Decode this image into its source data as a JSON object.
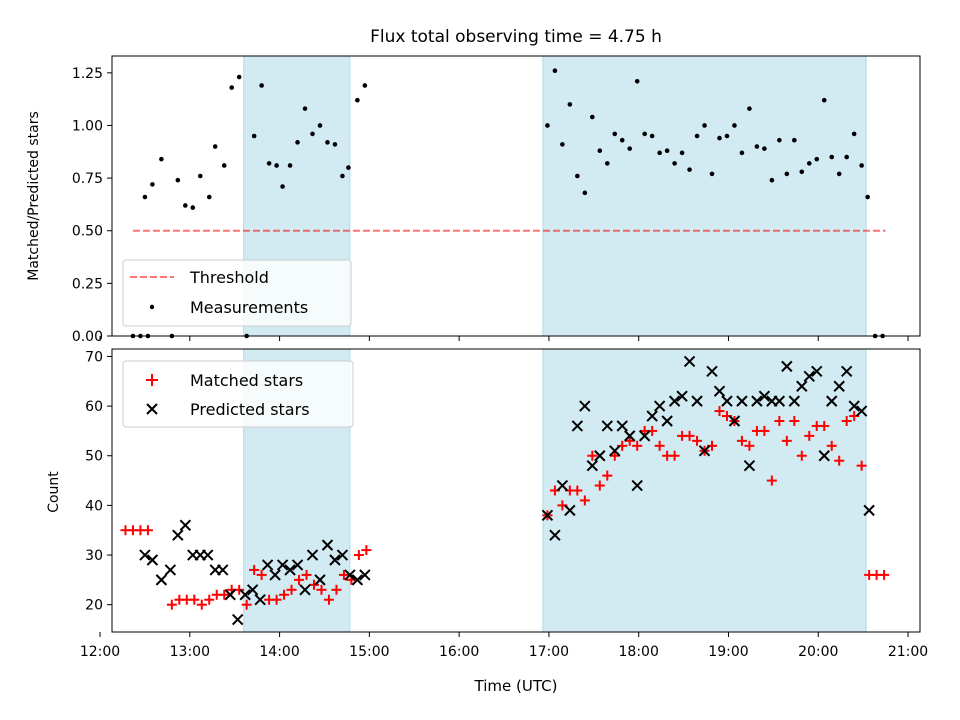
{
  "figure": {
    "title": "Flux total observing time = 4.75 h",
    "xlabel": "Time (UTC)"
  },
  "colors": {
    "shade": "#add8e6",
    "threshold": "#ff0000",
    "measurement": "#000000",
    "matched": "#ff0000",
    "predicted": "#000000"
  },
  "chart_data": [
    {
      "type": "scatter",
      "ylabel": "Matched/Predicted stars",
      "xlim": [
        "12:08",
        "21:08"
      ],
      "ylim": [
        0,
        1.33
      ],
      "x_ticks": [
        "12:00",
        "13:00",
        "14:00",
        "15:00",
        "16:00",
        "17:00",
        "18:00",
        "19:00",
        "20:00",
        "21:00"
      ],
      "y_ticks": [
        "0.00",
        "0.25",
        "0.50",
        "0.75",
        "1.00",
        "1.25"
      ],
      "shaded_spans": [
        [
          "13:36",
          "14:47"
        ],
        [
          "16:56",
          "20:32"
        ]
      ],
      "legend": {
        "position": "lower-left",
        "entries": [
          "Threshold",
          "Measurements"
        ]
      },
      "threshold": {
        "label": "Threshold",
        "value": 0.5,
        "x_range": [
          "12:22",
          "20:45"
        ]
      },
      "measurements": {
        "label": "Measurements",
        "points": [
          [
            "12:22",
            0.0
          ],
          [
            "12:27",
            0.0
          ],
          [
            "12:32",
            0.0
          ],
          [
            "12:48",
            0.0
          ],
          [
            "13:38",
            0.0
          ],
          [
            "20:38",
            0.0
          ],
          [
            "20:43",
            0.0
          ],
          [
            "12:30",
            0.66
          ],
          [
            "12:35",
            0.72
          ],
          [
            "12:41",
            0.84
          ],
          [
            "12:52",
            0.74
          ],
          [
            "12:57",
            0.62
          ],
          [
            "13:02",
            0.61
          ],
          [
            "13:07",
            0.76
          ],
          [
            "13:13",
            0.66
          ],
          [
            "13:17",
            0.9
          ],
          [
            "13:23",
            0.81
          ],
          [
            "13:28",
            1.18
          ],
          [
            "13:33",
            1.23
          ],
          [
            "13:43",
            0.95
          ],
          [
            "13:48",
            1.19
          ],
          [
            "13:53",
            0.82
          ],
          [
            "13:58",
            0.81
          ],
          [
            "14:02",
            0.71
          ],
          [
            "14:07",
            0.81
          ],
          [
            "14:12",
            0.92
          ],
          [
            "14:17",
            1.08
          ],
          [
            "14:22",
            0.96
          ],
          [
            "14:27",
            1.0
          ],
          [
            "14:32",
            0.92
          ],
          [
            "14:37",
            0.91
          ],
          [
            "14:42",
            0.76
          ],
          [
            "14:46",
            0.8
          ],
          [
            "14:52",
            1.12
          ],
          [
            "14:57",
            1.19
          ],
          [
            "16:59",
            1.0
          ],
          [
            "17:04",
            1.26
          ],
          [
            "17:09",
            0.91
          ],
          [
            "17:14",
            1.1
          ],
          [
            "17:19",
            0.76
          ],
          [
            "17:24",
            0.68
          ],
          [
            "17:29",
            1.04
          ],
          [
            "17:34",
            0.88
          ],
          [
            "17:39",
            0.82
          ],
          [
            "17:44",
            0.96
          ],
          [
            "17:49",
            0.93
          ],
          [
            "17:54",
            0.89
          ],
          [
            "17:59",
            1.21
          ],
          [
            "18:04",
            0.96
          ],
          [
            "18:09",
            0.95
          ],
          [
            "18:14",
            0.87
          ],
          [
            "18:19",
            0.88
          ],
          [
            "18:24",
            0.82
          ],
          [
            "18:29",
            0.87
          ],
          [
            "18:34",
            0.79
          ],
          [
            "18:39",
            0.95
          ],
          [
            "18:44",
            1.0
          ],
          [
            "18:49",
            0.77
          ],
          [
            "18:54",
            0.94
          ],
          [
            "18:59",
            0.95
          ],
          [
            "19:04",
            1.0
          ],
          [
            "19:09",
            0.87
          ],
          [
            "19:14",
            1.08
          ],
          [
            "19:19",
            0.9
          ],
          [
            "19:24",
            0.89
          ],
          [
            "19:29",
            0.74
          ],
          [
            "19:34",
            0.93
          ],
          [
            "19:39",
            0.77
          ],
          [
            "19:44",
            0.93
          ],
          [
            "19:49",
            0.78
          ],
          [
            "19:54",
            0.82
          ],
          [
            "19:59",
            0.84
          ],
          [
            "20:04",
            1.12
          ],
          [
            "20:09",
            0.85
          ],
          [
            "20:14",
            0.77
          ],
          [
            "20:19",
            0.85
          ],
          [
            "20:24",
            0.96
          ],
          [
            "20:29",
            0.81
          ],
          [
            "20:33",
            0.66
          ]
        ]
      }
    },
    {
      "type": "scatter",
      "ylabel": "Count",
      "xlim": [
        "12:08",
        "21:08"
      ],
      "ylim": [
        14.5,
        71.5
      ],
      "x_ticks": [
        "12:00",
        "13:00",
        "14:00",
        "15:00",
        "16:00",
        "17:00",
        "18:00",
        "19:00",
        "20:00",
        "21:00"
      ],
      "y_ticks": [
        "20",
        "30",
        "40",
        "50",
        "60",
        "70"
      ],
      "shaded_spans": [
        [
          "13:36",
          "14:47"
        ],
        [
          "16:56",
          "20:32"
        ]
      ],
      "legend": {
        "position": "upper-left",
        "entries": [
          "Matched stars",
          "Predicted stars"
        ]
      },
      "series": [
        {
          "name": "Matched stars",
          "marker": "plus",
          "points": [
            [
              "12:17",
              35
            ],
            [
              "12:22",
              35
            ],
            [
              "12:27",
              35
            ],
            [
              "12:32",
              35
            ],
            [
              "12:48",
              20
            ],
            [
              "12:53",
              21
            ],
            [
              "12:58",
              21
            ],
            [
              "13:03",
              21
            ],
            [
              "13:08",
              20
            ],
            [
              "13:13",
              21
            ],
            [
              "13:18",
              22
            ],
            [
              "13:23",
              22
            ],
            [
              "13:28",
              23
            ],
            [
              "13:33",
              23
            ],
            [
              "13:38",
              20
            ],
            [
              "13:43",
              27
            ],
            [
              "13:48",
              26
            ],
            [
              "13:53",
              21
            ],
            [
              "13:58",
              21
            ],
            [
              "14:03",
              22
            ],
            [
              "14:08",
              23
            ],
            [
              "14:13",
              25
            ],
            [
              "14:18",
              26
            ],
            [
              "14:23",
              24
            ],
            [
              "14:28",
              23
            ],
            [
              "14:33",
              21
            ],
            [
              "14:38",
              23
            ],
            [
              "14:43",
              26
            ],
            [
              "14:48",
              25
            ],
            [
              "14:53",
              30
            ],
            [
              "14:58",
              31
            ],
            [
              "16:59",
              38
            ],
            [
              "17:04",
              43
            ],
            [
              "17:09",
              40
            ],
            [
              "17:14",
              43
            ],
            [
              "17:19",
              43
            ],
            [
              "17:24",
              41
            ],
            [
              "17:29",
              50
            ],
            [
              "17:34",
              44
            ],
            [
              "17:39",
              46
            ],
            [
              "17:44",
              50
            ],
            [
              "17:49",
              52
            ],
            [
              "17:54",
              53
            ],
            [
              "17:59",
              52
            ],
            [
              "18:04",
              55
            ],
            [
              "18:09",
              55
            ],
            [
              "18:14",
              52
            ],
            [
              "18:19",
              50
            ],
            [
              "18:24",
              50
            ],
            [
              "18:29",
              54
            ],
            [
              "18:34",
              54
            ],
            [
              "18:39",
              53
            ],
            [
              "18:44",
              51
            ],
            [
              "18:49",
              52
            ],
            [
              "18:54",
              59
            ],
            [
              "18:59",
              58
            ],
            [
              "19:04",
              57
            ],
            [
              "19:09",
              53
            ],
            [
              "19:14",
              52
            ],
            [
              "19:19",
              55
            ],
            [
              "19:24",
              55
            ],
            [
              "19:29",
              45
            ],
            [
              "19:34",
              57
            ],
            [
              "19:39",
              53
            ],
            [
              "19:44",
              57
            ],
            [
              "19:49",
              50
            ],
            [
              "19:54",
              54
            ],
            [
              "19:59",
              56
            ],
            [
              "20:04",
              56
            ],
            [
              "20:09",
              52
            ],
            [
              "20:14",
              49
            ],
            [
              "20:19",
              57
            ],
            [
              "20:24",
              58
            ],
            [
              "20:29",
              48
            ],
            [
              "20:34",
              26
            ],
            [
              "20:39",
              26
            ],
            [
              "20:44",
              26
            ]
          ]
        },
        {
          "name": "Predicted stars",
          "marker": "x",
          "points": [
            [
              "12:30",
              30
            ],
            [
              "12:35",
              29
            ],
            [
              "12:41",
              25
            ],
            [
              "12:47",
              27
            ],
            [
              "12:52",
              34
            ],
            [
              "12:57",
              36
            ],
            [
              "13:02",
              30
            ],
            [
              "13:07",
              30
            ],
            [
              "13:12",
              30
            ],
            [
              "13:17",
              27
            ],
            [
              "13:22",
              27
            ],
            [
              "13:27",
              22
            ],
            [
              "13:32",
              17
            ],
            [
              "13:37",
              22
            ],
            [
              "13:42",
              23
            ],
            [
              "13:47",
              21
            ],
            [
              "13:52",
              28
            ],
            [
              "13:57",
              26
            ],
            [
              "14:02",
              28
            ],
            [
              "14:07",
              27
            ],
            [
              "14:12",
              28
            ],
            [
              "14:17",
              23
            ],
            [
              "14:22",
              30
            ],
            [
              "14:27",
              25
            ],
            [
              "14:32",
              32
            ],
            [
              "14:37",
              29
            ],
            [
              "14:42",
              30
            ],
            [
              "14:47",
              26
            ],
            [
              "14:52",
              25
            ],
            [
              "14:57",
              26
            ],
            [
              "16:59",
              38
            ],
            [
              "17:04",
              34
            ],
            [
              "17:09",
              44
            ],
            [
              "17:14",
              39
            ],
            [
              "17:19",
              56
            ],
            [
              "17:24",
              60
            ],
            [
              "17:29",
              48
            ],
            [
              "17:34",
              50
            ],
            [
              "17:39",
              56
            ],
            [
              "17:44",
              51
            ],
            [
              "17:49",
              56
            ],
            [
              "17:54",
              54
            ],
            [
              "17:59",
              44
            ],
            [
              "18:04",
              54
            ],
            [
              "18:09",
              58
            ],
            [
              "18:14",
              60
            ],
            [
              "18:19",
              57
            ],
            [
              "18:24",
              61
            ],
            [
              "18:29",
              62
            ],
            [
              "18:34",
              69
            ],
            [
              "18:39",
              61
            ],
            [
              "18:44",
              51
            ],
            [
              "18:49",
              67
            ],
            [
              "18:54",
              63
            ],
            [
              "18:59",
              61
            ],
            [
              "19:04",
              57
            ],
            [
              "19:09",
              61
            ],
            [
              "19:14",
              48
            ],
            [
              "19:19",
              61
            ],
            [
              "19:24",
              62
            ],
            [
              "19:29",
              61
            ],
            [
              "19:34",
              61
            ],
            [
              "19:39",
              68
            ],
            [
              "19:44",
              61
            ],
            [
              "19:49",
              64
            ],
            [
              "19:54",
              66
            ],
            [
              "19:59",
              67
            ],
            [
              "20:04",
              50
            ],
            [
              "20:09",
              61
            ],
            [
              "20:14",
              64
            ],
            [
              "20:19",
              67
            ],
            [
              "20:24",
              60
            ],
            [
              "20:29",
              59
            ],
            [
              "20:34",
              39
            ]
          ]
        }
      ]
    }
  ]
}
